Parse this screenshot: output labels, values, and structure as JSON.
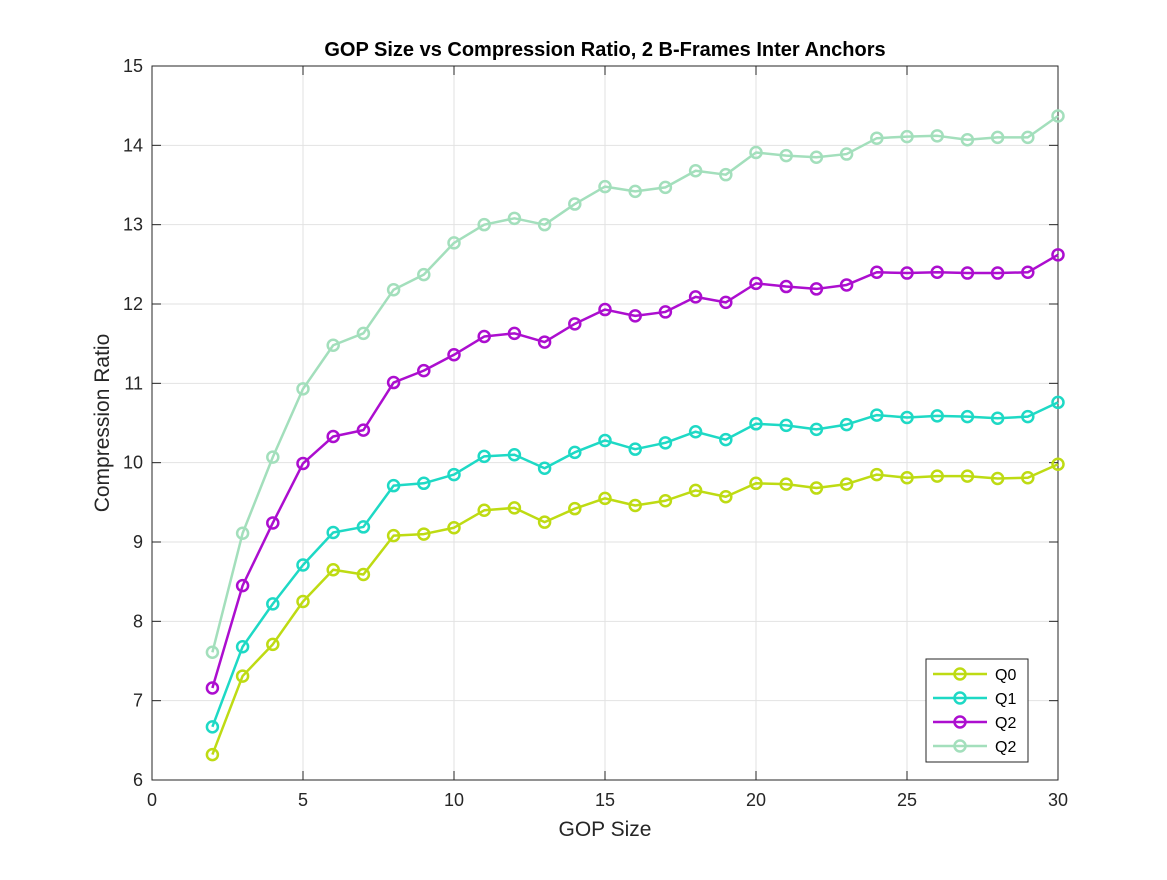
{
  "chart_data": {
    "type": "line",
    "title": "GOP Size vs Compression Ratio, 2 B-Frames Inter Anchors",
    "xlabel": "GOP Size",
    "ylabel": "Compression Ratio",
    "xlim": [
      0,
      30
    ],
    "ylim": [
      6,
      15
    ],
    "xticks": [
      0,
      5,
      10,
      15,
      20,
      25,
      30
    ],
    "yticks": [
      6,
      7,
      8,
      9,
      10,
      11,
      12,
      13,
      14,
      15
    ],
    "grid": true,
    "legend_position": "bottom-right",
    "marker": "circle",
    "x": [
      2,
      3,
      4,
      5,
      6,
      7,
      8,
      9,
      10,
      11,
      12,
      13,
      14,
      15,
      16,
      17,
      18,
      19,
      20,
      21,
      22,
      23,
      24,
      25,
      26,
      27,
      28,
      29,
      30
    ],
    "series": [
      {
        "name": "Q0",
        "color": "#bedb13",
        "values": [
          6.32,
          7.31,
          7.71,
          8.25,
          8.65,
          8.59,
          9.08,
          9.1,
          9.18,
          9.4,
          9.43,
          9.25,
          9.42,
          9.55,
          9.46,
          9.52,
          9.65,
          9.57,
          9.74,
          9.73,
          9.68,
          9.73,
          9.85,
          9.81,
          9.83,
          9.83,
          9.8,
          9.81,
          9.98
        ]
      },
      {
        "name": "Q1",
        "color": "#1ed9c5",
        "values": [
          6.67,
          7.68,
          8.22,
          8.71,
          9.12,
          9.19,
          9.71,
          9.74,
          9.85,
          10.08,
          10.1,
          9.93,
          10.13,
          10.28,
          10.17,
          10.25,
          10.39,
          10.29,
          10.49,
          10.47,
          10.42,
          10.48,
          10.6,
          10.57,
          10.59,
          10.58,
          10.56,
          10.58,
          10.76
        ]
      },
      {
        "name": "Q2",
        "color": "#ac0ecf",
        "values": [
          7.16,
          8.45,
          9.24,
          9.99,
          10.33,
          10.41,
          11.01,
          11.16,
          11.36,
          11.59,
          11.63,
          11.52,
          11.75,
          11.93,
          11.85,
          11.9,
          12.09,
          12.02,
          12.26,
          12.22,
          12.19,
          12.24,
          12.4,
          12.39,
          12.4,
          12.39,
          12.39,
          12.4,
          12.62
        ]
      },
      {
        "name": "Q2",
        "color": "#a3dfbc",
        "values": [
          7.61,
          9.11,
          10.07,
          10.93,
          11.48,
          11.63,
          12.18,
          12.37,
          12.77,
          13.0,
          13.08,
          13.0,
          13.26,
          13.48,
          13.42,
          13.47,
          13.68,
          13.63,
          13.91,
          13.87,
          13.85,
          13.89,
          14.09,
          14.11,
          14.12,
          14.07,
          14.1,
          14.1,
          14.37
        ]
      }
    ]
  }
}
